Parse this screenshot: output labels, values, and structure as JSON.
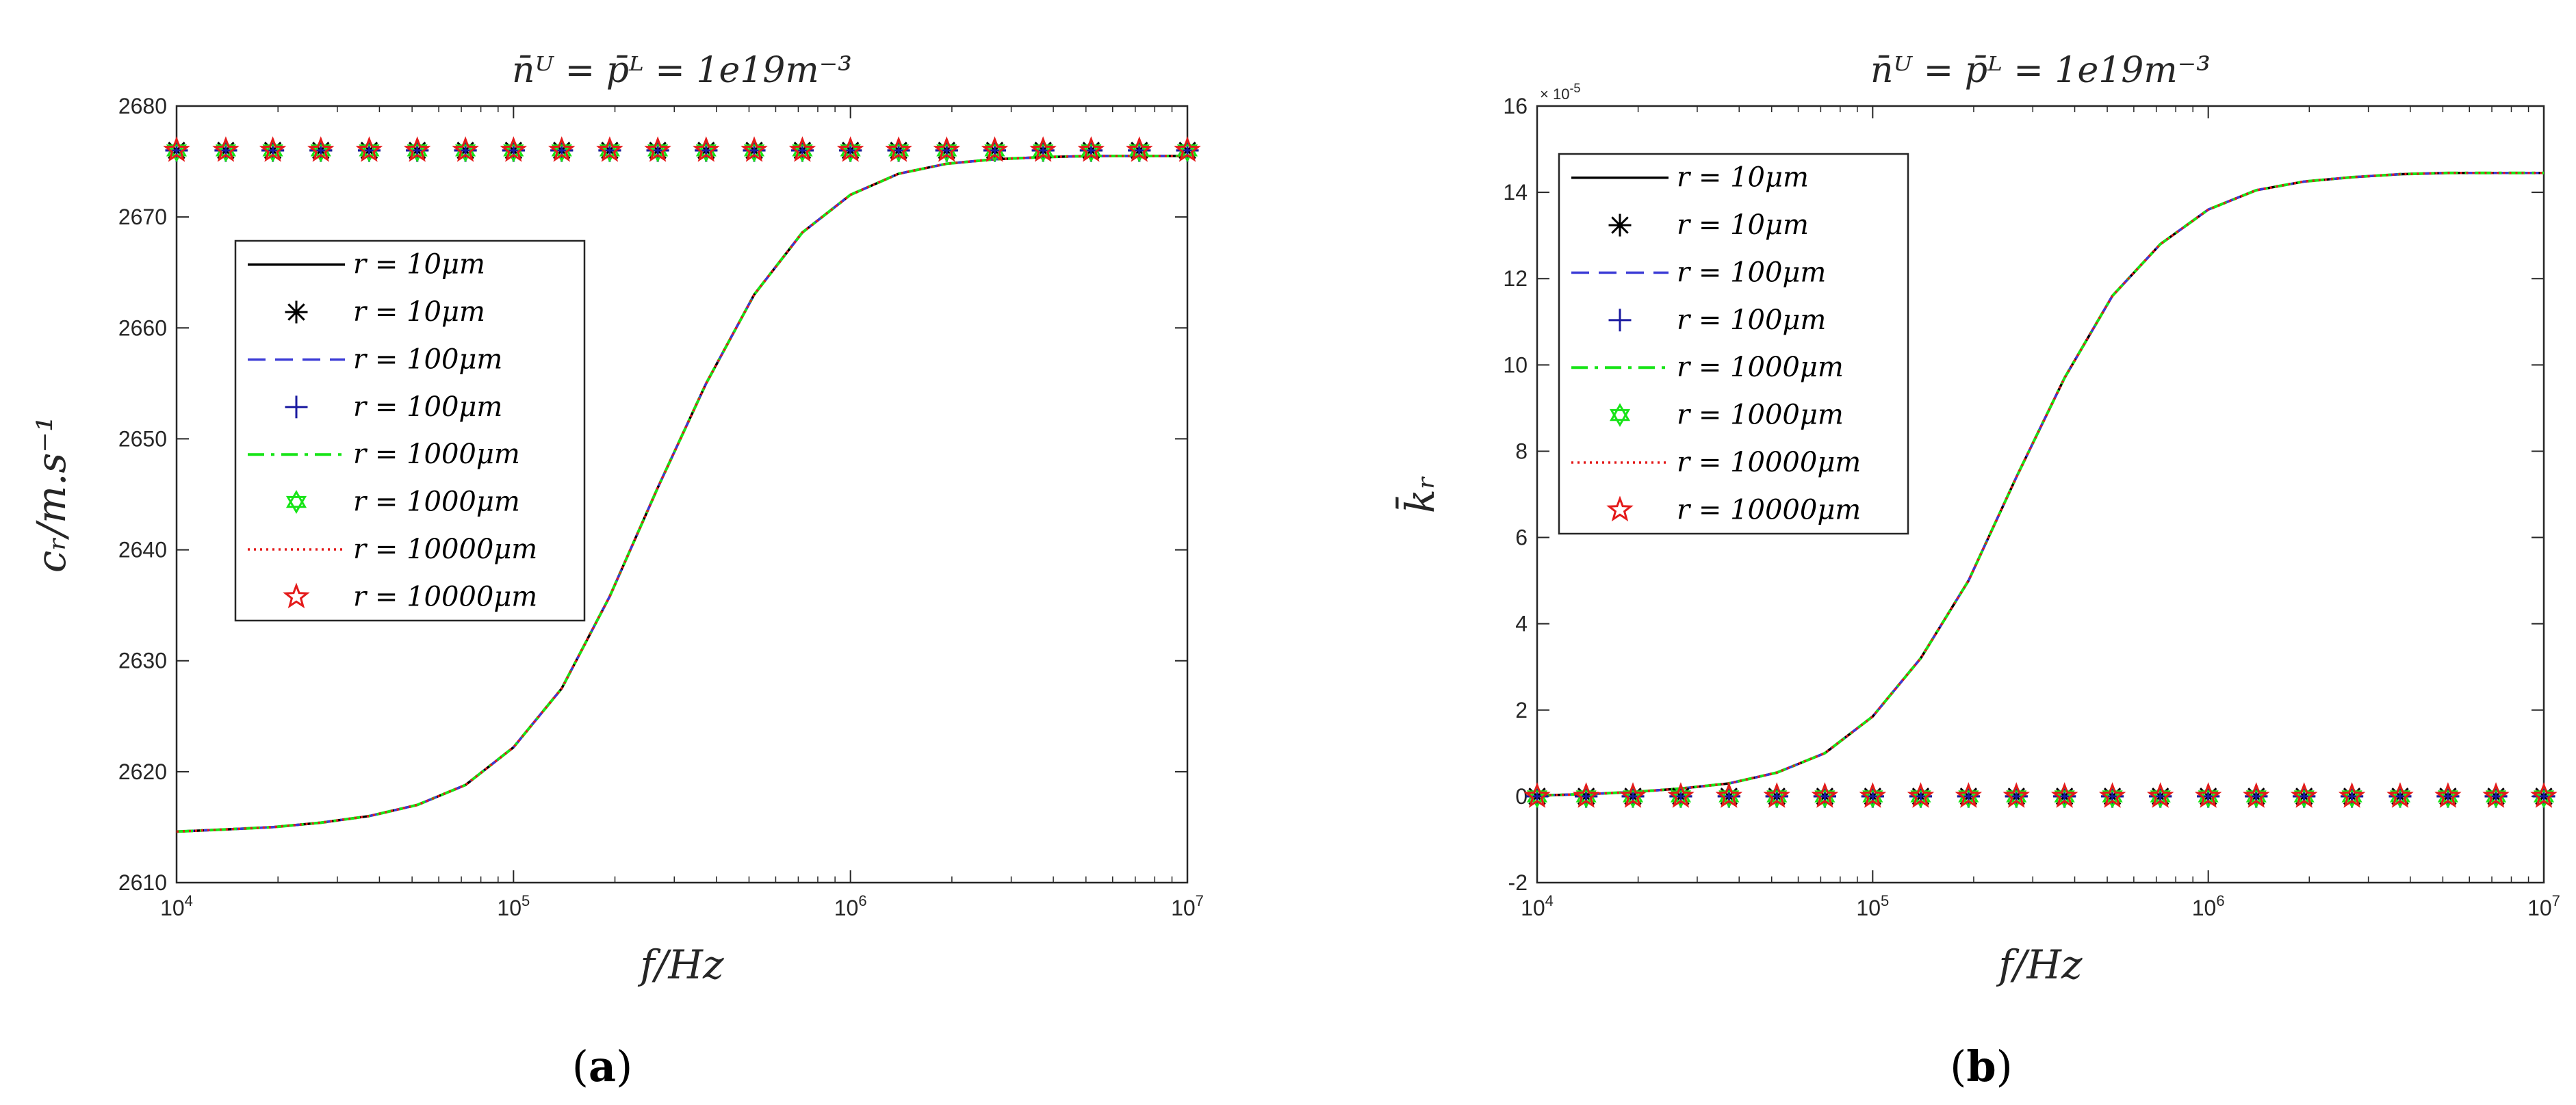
{
  "chart_data": [
    {
      "type": "line",
      "panel_label": "a",
      "title": "n̄ᵁ = p̄ᴸ = 1e19m⁻³",
      "xlabel": "f/Hz",
      "ylabel": "cᵣ/m.s⁻¹",
      "xscale": "log",
      "xlim": [
        10000,
        10000000
      ],
      "ylim": [
        2610,
        2680
      ],
      "yticks": [
        2610,
        2620,
        2630,
        2640,
        2650,
        2660,
        2670,
        2680
      ],
      "xtick_base": "10",
      "xtick_exponents": [
        "4",
        "5",
        "6",
        "7"
      ],
      "y_multiplier": "",
      "legend_position": "upper-left",
      "series": [
        {
          "name": "r = 10μm",
          "style": "solid-line",
          "color": "#000000"
        },
        {
          "name": "r = 10μm",
          "style": "asterisk-marker",
          "color": "#000000"
        },
        {
          "name": "r = 100μm",
          "style": "dashed-line",
          "color": "#3a3ad6"
        },
        {
          "name": "r = 100μm",
          "style": "plus-marker",
          "color": "#1a1aa0"
        },
        {
          "name": "r = 1000μm",
          "style": "dashdot-line",
          "color": "#17e417"
        },
        {
          "name": "r = 1000μm",
          "style": "hexagram-marker",
          "color": "#17e417"
        },
        {
          "name": "r = 10000μm",
          "style": "dotted-line",
          "color": "#e41a1a"
        },
        {
          "name": "r = 10000μm",
          "style": "pentagram-marker",
          "color": "#e41a1a"
        }
      ],
      "line_curve": {
        "x": [
          10000,
          14000,
          19300,
          26800,
          37300,
          51800,
          72000,
          100000,
          139000,
          193000,
          268000,
          373000,
          518000,
          720000,
          1000000,
          1390000,
          1930000,
          2680000,
          3730000,
          5180000,
          7200000,
          10000000
        ],
        "y": [
          2614.6,
          2614.8,
          2615.0,
          2615.4,
          2616.0,
          2617.0,
          2618.8,
          2622.2,
          2627.5,
          2635.8,
          2645.6,
          2655.0,
          2663.0,
          2668.6,
          2672.0,
          2673.9,
          2674.8,
          2675.2,
          2675.4,
          2675.5,
          2675.5,
          2675.5
        ]
      },
      "marker_x": [
        10000,
        14000,
        19300,
        26800,
        37300,
        51800,
        72000,
        100000,
        139000,
        193000,
        268000,
        373000,
        518000,
        720000,
        1000000,
        1390000,
        1930000,
        2680000,
        3730000,
        5180000,
        7200000,
        10000000
      ],
      "marker_y": 2676.0
    },
    {
      "type": "line",
      "panel_label": "b",
      "title": "n̄ᵁ = p̄ᴸ = 1e19m⁻³",
      "xlabel": "f/Hz",
      "ylabel": "k̄ᵣ",
      "xscale": "log",
      "xlim": [
        10000,
        10000000
      ],
      "ylim": [
        -2,
        16
      ],
      "yticks": [
        -2,
        0,
        2,
        4,
        6,
        8,
        10,
        12,
        14,
        16
      ],
      "xtick_base": "10",
      "xtick_exponents": [
        "4",
        "5",
        "6",
        "7"
      ],
      "y_multiplier": "× 10",
      "y_multiplier_exp": "-5",
      "legend_position": "upper-left",
      "series": [
        {
          "name": "r = 10μm",
          "style": "solid-line",
          "color": "#000000"
        },
        {
          "name": "r = 10μm",
          "style": "asterisk-marker",
          "color": "#000000"
        },
        {
          "name": "r = 100μm",
          "style": "dashed-line",
          "color": "#3a3ad6"
        },
        {
          "name": "r = 100μm",
          "style": "plus-marker",
          "color": "#1a1aa0"
        },
        {
          "name": "r = 1000μm",
          "style": "dashdot-line",
          "color": "#17e417"
        },
        {
          "name": "r = 1000μm",
          "style": "hexagram-marker",
          "color": "#17e417"
        },
        {
          "name": "r = 10000μm",
          "style": "dotted-line",
          "color": "#e41a1a"
        },
        {
          "name": "r = 10000μm",
          "style": "pentagram-marker",
          "color": "#e41a1a"
        }
      ],
      "line_curve": {
        "x": [
          10000,
          14000,
          19300,
          26800,
          37300,
          51800,
          72000,
          100000,
          139000,
          193000,
          268000,
          373000,
          518000,
          720000,
          1000000,
          1390000,
          1930000,
          2680000,
          3730000,
          5180000,
          7200000,
          10000000
        ],
        "y": [
          0.02,
          0.05,
          0.1,
          0.18,
          0.3,
          0.55,
          1.0,
          1.85,
          3.2,
          5.0,
          7.4,
          9.7,
          11.6,
          12.8,
          13.6,
          14.05,
          14.25,
          14.35,
          14.42,
          14.45,
          14.45,
          14.45
        ]
      },
      "marker_x": [
        10000,
        14000,
        19300,
        26800,
        37300,
        51800,
        72000,
        100000,
        139000,
        193000,
        268000,
        373000,
        518000,
        720000,
        1000000,
        1390000,
        1930000,
        2680000,
        3730000,
        5180000,
        7200000,
        10000000
      ],
      "marker_y": 0.0
    }
  ],
  "captions": {
    "a": "(a)",
    "b": "(b)"
  }
}
